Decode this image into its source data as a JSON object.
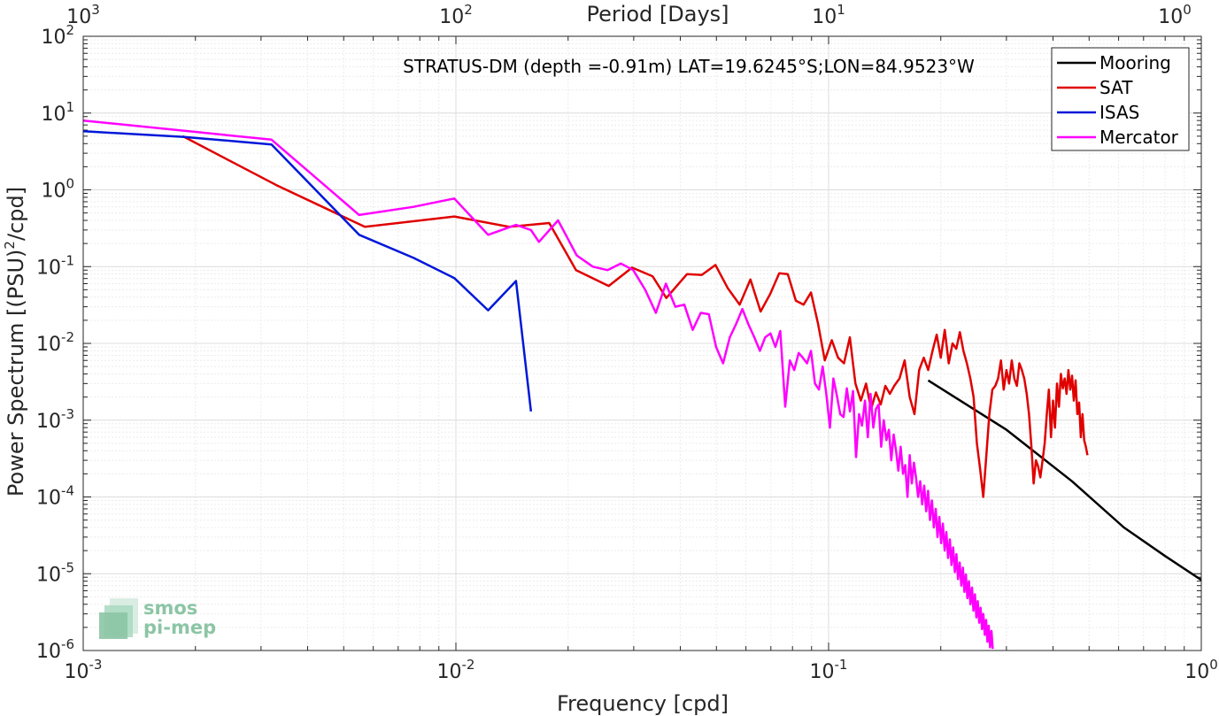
{
  "chart_data": {
    "type": "line",
    "title": "STRATUS-DM (depth =-0.91m) LAT=19.6245°S;LON=84.9523°W",
    "xlabel": "Frequency [cpd]",
    "ylabel_main": "Power Spectrum [(PSU)",
    "ylabel_sup": "2",
    "ylabel_tail": "/cpd]",
    "x2label": "Period [Days]",
    "xscale": "log",
    "yscale": "log",
    "xlim": [
      0.001,
      1
    ],
    "ylim": [
      1e-06,
      100
    ],
    "grid": true,
    "legend_position": "top-right",
    "x_ticks": [
      {
        "value": 0.001,
        "base": "10",
        "exp": "-3"
      },
      {
        "value": 0.01,
        "base": "10",
        "exp": "-2"
      },
      {
        "value": 0.1,
        "base": "10",
        "exp": "-1"
      },
      {
        "value": 1,
        "base": "10",
        "exp": "0"
      }
    ],
    "x2_ticks": [
      {
        "value": 0.001,
        "base": "10",
        "exp": "3"
      },
      {
        "value": 0.01,
        "base": "10",
        "exp": "2"
      },
      {
        "value": 0.1,
        "base": "10",
        "exp": "1"
      },
      {
        "value": 1,
        "base": "10",
        "exp": "0"
      }
    ],
    "y_ticks": [
      {
        "value": 100,
        "base": "10",
        "exp": "2"
      },
      {
        "value": 10,
        "base": "10",
        "exp": "1"
      },
      {
        "value": 1,
        "base": "10",
        "exp": "0"
      },
      {
        "value": 0.1,
        "base": "10",
        "exp": "-1"
      },
      {
        "value": 0.01,
        "base": "10",
        "exp": "-2"
      },
      {
        "value": 0.001,
        "base": "10",
        "exp": "-3"
      },
      {
        "value": 0.0001,
        "base": "10",
        "exp": "-4"
      },
      {
        "value": 1e-05,
        "base": "10",
        "exp": "-5"
      },
      {
        "value": 1e-06,
        "base": "10",
        "exp": "-6"
      }
    ],
    "series": [
      {
        "name": "Mooring",
        "color": "#000000",
        "points": [
          [
            0.185,
            0.0033
          ],
          [
            0.3,
            0.00075
          ],
          [
            0.45,
            0.00016
          ],
          [
            0.62,
            4e-05
          ],
          [
            0.8,
            1.7e-05
          ],
          [
            1.0,
            8.3e-06
          ]
        ]
      },
      {
        "name": "SAT",
        "color": "#e00000",
        "points": [
          [
            0.00185,
            5.0
          ],
          [
            0.0033,
            1.15
          ],
          [
            0.0057,
            0.33
          ],
          [
            0.0099,
            0.45
          ],
          [
            0.0139,
            0.33
          ],
          [
            0.0178,
            0.37
          ],
          [
            0.021,
            0.09
          ],
          [
            0.0257,
            0.056
          ],
          [
            0.0297,
            0.097
          ],
          [
            0.0337,
            0.075
          ],
          [
            0.0367,
            0.039
          ],
          [
            0.0417,
            0.08
          ],
          [
            0.0457,
            0.078
          ],
          [
            0.0497,
            0.105
          ],
          [
            0.0537,
            0.052
          ],
          [
            0.0577,
            0.032
          ],
          [
            0.0617,
            0.068
          ],
          [
            0.0657,
            0.026
          ],
          [
            0.0697,
            0.044
          ],
          [
            0.0737,
            0.082
          ],
          [
            0.0777,
            0.08
          ],
          [
            0.0817,
            0.036
          ],
          [
            0.0857,
            0.032
          ],
          [
            0.0897,
            0.046
          ],
          [
            0.0937,
            0.018
          ],
          [
            0.0977,
            0.006
          ],
          [
            0.102,
            0.011
          ],
          [
            0.106,
            0.0065
          ],
          [
            0.11,
            0.0055
          ],
          [
            0.114,
            0.012
          ],
          [
            0.118,
            0.003
          ],
          [
            0.122,
            0.0018
          ],
          [
            0.126,
            0.003
          ],
          [
            0.13,
            0.0014
          ],
          [
            0.134,
            0.0023
          ],
          [
            0.138,
            0.0016
          ],
          [
            0.142,
            0.0028
          ],
          [
            0.146,
            0.0022
          ],
          [
            0.15,
            0.0028
          ],
          [
            0.155,
            0.0035
          ],
          [
            0.16,
            0.006
          ],
          [
            0.165,
            0.002
          ],
          [
            0.17,
            0.0012
          ],
          [
            0.175,
            0.0045
          ],
          [
            0.18,
            0.0065
          ],
          [
            0.185,
            0.0045
          ],
          [
            0.19,
            0.008
          ],
          [
            0.195,
            0.013
          ],
          [
            0.2,
            0.0065
          ],
          [
            0.205,
            0.015
          ],
          [
            0.21,
            0.0055
          ],
          [
            0.215,
            0.01
          ],
          [
            0.22,
            0.0085
          ],
          [
            0.225,
            0.014
          ],
          [
            0.23,
            0.008
          ],
          [
            0.235,
            0.0055
          ],
          [
            0.24,
            0.0035
          ],
          [
            0.245,
            0.002
          ],
          [
            0.25,
            0.0005
          ],
          [
            0.255,
            0.00023
          ],
          [
            0.26,
            0.0001
          ],
          [
            0.265,
            0.00035
          ],
          [
            0.27,
            0.0012
          ],
          [
            0.275,
            0.0025
          ],
          [
            0.28,
            0.0028
          ],
          [
            0.285,
            0.0035
          ],
          [
            0.29,
            0.006
          ],
          [
            0.295,
            0.0025
          ],
          [
            0.3,
            0.0045
          ],
          [
            0.305,
            0.003
          ],
          [
            0.31,
            0.006
          ],
          [
            0.315,
            0.0035
          ],
          [
            0.32,
            0.0028
          ],
          [
            0.325,
            0.0055
          ],
          [
            0.33,
            0.0045
          ],
          [
            0.335,
            0.0035
          ],
          [
            0.34,
            0.0022
          ],
          [
            0.345,
            0.0012
          ],
          [
            0.35,
            0.00045
          ],
          [
            0.355,
            0.00015
          ],
          [
            0.36,
            0.0003
          ],
          [
            0.365,
            0.00025
          ],
          [
            0.37,
            0.00018
          ],
          [
            0.375,
            0.0003
          ],
          [
            0.38,
            0.0005
          ],
          [
            0.385,
            0.0012
          ],
          [
            0.39,
            0.0025
          ],
          [
            0.395,
            0.0006
          ],
          [
            0.4,
            0.0018
          ],
          [
            0.405,
            0.0008
          ],
          [
            0.41,
            0.003
          ],
          [
            0.415,
            0.0015
          ],
          [
            0.42,
            0.004
          ],
          [
            0.425,
            0.0026
          ],
          [
            0.43,
            0.0035
          ],
          [
            0.435,
            0.0022
          ],
          [
            0.44,
            0.0045
          ],
          [
            0.445,
            0.0025
          ],
          [
            0.45,
            0.0038
          ],
          [
            0.455,
            0.0018
          ],
          [
            0.46,
            0.0033
          ],
          [
            0.465,
            0.0012
          ],
          [
            0.47,
            0.0017
          ],
          [
            0.475,
            0.0006
          ],
          [
            0.48,
            0.0012
          ],
          [
            0.485,
            0.00055
          ],
          [
            0.49,
            0.00045
          ],
          [
            0.495,
            0.00035
          ]
        ]
      },
      {
        "name": "ISAS",
        "color": "#0018d8",
        "points": [
          [
            0.001,
            5.8
          ],
          [
            0.00185,
            4.9
          ],
          [
            0.0032,
            3.9
          ],
          [
            0.0055,
            0.26
          ],
          [
            0.0077,
            0.13
          ],
          [
            0.0099,
            0.071
          ],
          [
            0.0122,
            0.027
          ],
          [
            0.0145,
            0.065
          ],
          [
            0.0159,
            0.0013
          ]
        ]
      },
      {
        "name": "Mercator",
        "color": "#ff00ff",
        "points": [
          [
            0.001,
            8.0
          ],
          [
            0.0032,
            4.5
          ],
          [
            0.0055,
            0.47
          ],
          [
            0.0077,
            0.6
          ],
          [
            0.0099,
            0.77
          ],
          [
            0.0122,
            0.26
          ],
          [
            0.0145,
            0.35
          ],
          [
            0.0159,
            0.3
          ],
          [
            0.0167,
            0.21
          ],
          [
            0.0188,
            0.4
          ],
          [
            0.0211,
            0.14
          ],
          [
            0.0233,
            0.1
          ],
          [
            0.0255,
            0.09
          ],
          [
            0.0277,
            0.11
          ],
          [
            0.0299,
            0.09
          ],
          [
            0.0322,
            0.05
          ],
          [
            0.0344,
            0.025
          ],
          [
            0.0366,
            0.06
          ],
          [
            0.0388,
            0.03
          ],
          [
            0.041,
            0.032
          ],
          [
            0.0432,
            0.015
          ],
          [
            0.0454,
            0.025
          ],
          [
            0.0477,
            0.024
          ],
          [
            0.0499,
            0.009
          ],
          [
            0.0521,
            0.0055
          ],
          [
            0.0543,
            0.012
          ],
          [
            0.0565,
            0.018
          ],
          [
            0.0587,
            0.028
          ],
          [
            0.061,
            0.0175
          ],
          [
            0.0632,
            0.012
          ],
          [
            0.0654,
            0.008
          ],
          [
            0.0676,
            0.012
          ],
          [
            0.0698,
            0.0135
          ],
          [
            0.072,
            0.009
          ],
          [
            0.0742,
            0.0145
          ],
          [
            0.0765,
            0.0015
          ],
          [
            0.0787,
            0.006
          ],
          [
            0.0809,
            0.0045
          ],
          [
            0.0831,
            0.0075
          ],
          [
            0.0853,
            0.0065
          ],
          [
            0.0875,
            0.0055
          ],
          [
            0.0897,
            0.008
          ],
          [
            0.0919,
            0.003
          ],
          [
            0.0942,
            0.0025
          ],
          [
            0.0964,
            0.005
          ],
          [
            0.0986,
            0.0022
          ],
          [
            0.1008,
            0.0008
          ],
          [
            0.103,
            0.0035
          ],
          [
            0.1052,
            0.0021
          ],
          [
            0.1074,
            0.0012
          ],
          [
            0.1097,
            0.0011
          ],
          [
            0.1119,
            0.0026
          ],
          [
            0.1141,
            0.0013
          ],
          [
            0.1163,
            0.0024
          ],
          [
            0.1185,
            0.00033
          ],
          [
            0.1207,
            0.0012
          ],
          [
            0.1229,
            0.00085
          ],
          [
            0.1252,
            0.0018
          ],
          [
            0.1274,
            0.0006
          ],
          [
            0.1296,
            0.0022
          ],
          [
            0.1318,
            0.0008
          ],
          [
            0.134,
            0.0014
          ],
          [
            0.1362,
            0.0016
          ],
          [
            0.1384,
            0.00045
          ],
          [
            0.1406,
            0.001
          ],
          [
            0.1429,
            0.00055
          ],
          [
            0.1451,
            0.00075
          ],
          [
            0.1473,
            0.0003
          ],
          [
            0.1495,
            0.00065
          ],
          [
            0.1517,
            0.0004
          ],
          [
            0.1539,
            0.00022
          ],
          [
            0.1561,
            0.00045
          ],
          [
            0.1584,
            0.0002
          ],
          [
            0.1606,
            0.00026
          ],
          [
            0.1628,
            0.0001
          ],
          [
            0.165,
            0.00035
          ],
          [
            0.1672,
            0.00015
          ],
          [
            0.1694,
            0.00028
          ],
          [
            0.1716,
            0.00018
          ],
          [
            0.1738,
            0.0001
          ],
          [
            0.1761,
            0.00016
          ],
          [
            0.1783,
            8e-05
          ],
          [
            0.1805,
            0.00014
          ],
          [
            0.1827,
            6.5e-05
          ],
          [
            0.1849,
            0.00012
          ],
          [
            0.1871,
            5e-05
          ],
          [
            0.1893,
            9e-05
          ],
          [
            0.1916,
            4e-05
          ],
          [
            0.1938,
            7e-05
          ],
          [
            0.196,
            3e-05
          ],
          [
            0.1982,
            5.5e-05
          ],
          [
            0.2004,
            2.5e-05
          ],
          [
            0.2026,
            4.5e-05
          ],
          [
            0.2048,
            2e-05
          ],
          [
            0.207,
            3.5e-05
          ],
          [
            0.2093,
            1.6e-05
          ],
          [
            0.2115,
            2.8e-05
          ],
          [
            0.2137,
            1.3e-05
          ],
          [
            0.2159,
            2.2e-05
          ],
          [
            0.2181,
            1.05e-05
          ],
          [
            0.2203,
            1.8e-05
          ],
          [
            0.2225,
            8.5e-06
          ],
          [
            0.2248,
            1.4e-05
          ],
          [
            0.227,
            7e-06
          ],
          [
            0.2292,
            1.2e-05
          ],
          [
            0.2314,
            5.8e-06
          ],
          [
            0.2336,
            9.8e-06
          ],
          [
            0.2358,
            4.8e-06
          ],
          [
            0.238,
            8e-06
          ],
          [
            0.2402,
            4e-06
          ],
          [
            0.2425,
            6.6e-06
          ],
          [
            0.2447,
            3.3e-06
          ],
          [
            0.2469,
            5.4e-06
          ],
          [
            0.2491,
            2.7e-06
          ],
          [
            0.2513,
            4.4e-06
          ],
          [
            0.2535,
            2.3e-06
          ],
          [
            0.2557,
            3.6e-06
          ],
          [
            0.258,
            1.9e-06
          ],
          [
            0.2602,
            3e-06
          ],
          [
            0.2624,
            1.6e-06
          ],
          [
            0.2646,
            2.5e-06
          ],
          [
            0.2668,
            1.3e-06
          ],
          [
            0.269,
            2.1e-06
          ],
          [
            0.2712,
            1.1e-06
          ],
          [
            0.2735,
            1.8e-06
          ],
          [
            0.2757,
            1.05e-06
          ]
        ]
      }
    ]
  },
  "logo": {
    "line1": "smos",
    "line2": "pi-mep"
  }
}
